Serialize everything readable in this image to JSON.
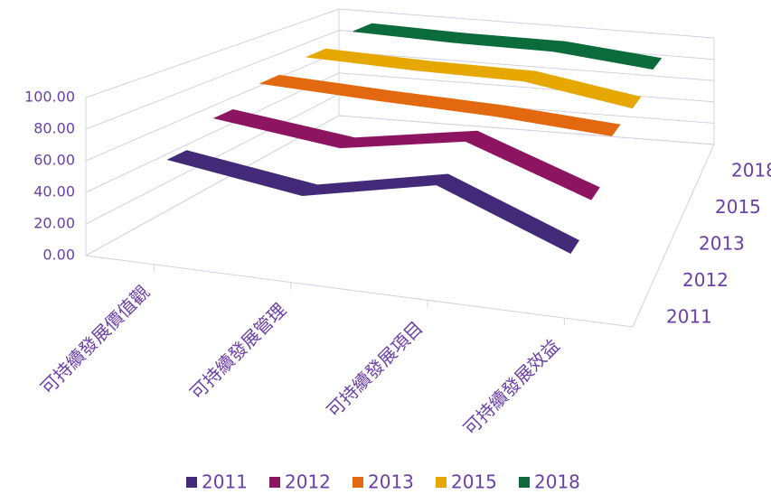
{
  "chart_data": {
    "type": "line3d",
    "categories": [
      "可持續發展價值觀",
      "可持續發展管理",
      "可持續發展項目",
      "可持續發展效益"
    ],
    "series": [
      {
        "name": "2011",
        "color": "#432a78",
        "values": [
          62,
          50,
          68,
          35
        ]
      },
      {
        "name": "2012",
        "color": "#8c1460",
        "values": [
          75,
          65,
          80,
          50
        ]
      },
      {
        "name": "2013",
        "color": "#e2690f",
        "values": [
          85,
          82,
          80,
          75
        ]
      },
      {
        "name": "2015",
        "color": "#e6a800",
        "values": [
          90,
          88,
          88,
          75
        ]
      },
      {
        "name": "2018",
        "color": "#0b6b3a",
        "values": [
          95,
          93,
          93,
          85
        ]
      }
    ],
    "ylim": [
      0,
      100
    ],
    "yticks": [
      {
        "value": 0,
        "label": "0.00"
      },
      {
        "value": 20,
        "label": "20.00"
      },
      {
        "value": 40,
        "label": "40.00"
      },
      {
        "value": 60,
        "label": "60.00"
      },
      {
        "value": 80,
        "label": "80.00"
      },
      {
        "value": 100,
        "label": "100.00"
      }
    ],
    "grid": true,
    "legend": "bottom"
  }
}
